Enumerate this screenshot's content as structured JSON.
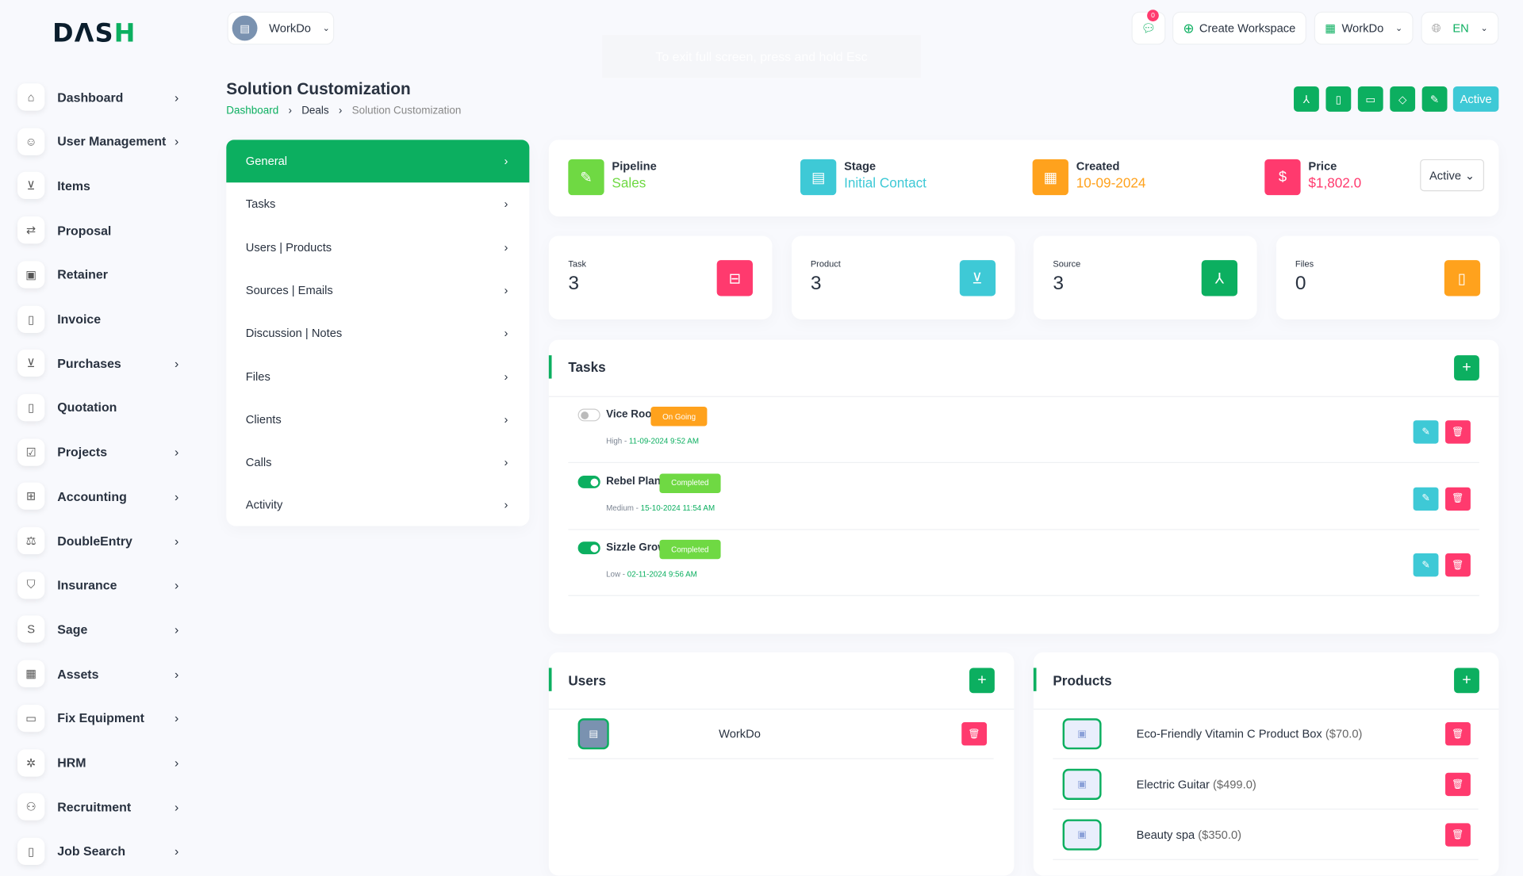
{
  "brand": {
    "logo": "DASH"
  },
  "colors": {
    "primary": "#0CAF60",
    "lime": "#6FD943",
    "cyan": "#3EC9D6",
    "orange": "#FFA21D",
    "pink": "#FF3A6E"
  },
  "sidebar": {
    "items": [
      {
        "label": "Dashboard",
        "icon": "home-icon",
        "chevron": true
      },
      {
        "label": "User Management",
        "icon": "users-icon",
        "chevron": true
      },
      {
        "label": "Items",
        "icon": "cart-icon",
        "chevron": false
      },
      {
        "label": "Proposal",
        "icon": "proposal-icon",
        "chevron": false
      },
      {
        "label": "Retainer",
        "icon": "retainer-icon",
        "chevron": false
      },
      {
        "label": "Invoice",
        "icon": "invoice-icon",
        "chevron": false
      },
      {
        "label": "Purchases",
        "icon": "cart-icon",
        "chevron": true
      },
      {
        "label": "Quotation",
        "icon": "file-icon",
        "chevron": false
      },
      {
        "label": "Projects",
        "icon": "checkbox-icon",
        "chevron": true
      },
      {
        "label": "Accounting",
        "icon": "grid-icon",
        "chevron": true
      },
      {
        "label": "DoubleEntry",
        "icon": "scale-icon",
        "chevron": true
      },
      {
        "label": "Insurance",
        "icon": "shield-icon",
        "chevron": true
      },
      {
        "label": "Sage",
        "icon": "sage-icon",
        "chevron": true
      },
      {
        "label": "Assets",
        "icon": "calculator-icon",
        "chevron": true
      },
      {
        "label": "Fix Equipment",
        "icon": "archive-icon",
        "chevron": true
      },
      {
        "label": "HRM",
        "icon": "hrm-icon",
        "chevron": true
      },
      {
        "label": "Recruitment",
        "icon": "user-plus-icon",
        "chevron": true
      },
      {
        "label": "Job Search",
        "icon": "search-file-icon",
        "chevron": true
      }
    ]
  },
  "header": {
    "workspace": "WorkDo",
    "notification_count": "0",
    "create_workspace": "Create Workspace",
    "workspace_menu": "WorkDo",
    "language": "EN",
    "fullscreen_notice": "To exit full screen, press and hold Esc"
  },
  "page": {
    "title": "Solution Customization",
    "breadcrumb": [
      "Dashboard",
      "Deals",
      "Solution Customization"
    ],
    "status_button": "Active"
  },
  "menu": {
    "items": [
      "General",
      "Tasks",
      "Users | Products",
      "Sources | Emails",
      "Discussion | Notes",
      "Files",
      "Clients",
      "Calls",
      "Activity"
    ]
  },
  "info": {
    "pipeline": {
      "label": "Pipeline",
      "value": "Sales"
    },
    "stage": {
      "label": "Stage",
      "value": "Initial Contact"
    },
    "created": {
      "label": "Created",
      "value": "10-09-2024"
    },
    "price": {
      "label": "Price",
      "value": "$1,802.0"
    },
    "status_select": "Active"
  },
  "stats": [
    {
      "label": "Task",
      "value": "3"
    },
    {
      "label": "Product",
      "value": "3"
    },
    {
      "label": "Source",
      "value": "3"
    },
    {
      "label": "Files",
      "value": "0"
    }
  ],
  "tasks": {
    "title": "Tasks",
    "items": [
      {
        "name": "Vice Root",
        "status": "On Going",
        "priority": "High",
        "date": "11-09-2024 9:52 AM",
        "done": false,
        "color": "#FFA21D"
      },
      {
        "name": "Rebel Plant",
        "status": "Completed",
        "priority": "Medium",
        "date": "15-10-2024 11:54 AM",
        "done": true,
        "color": "#6FD943"
      },
      {
        "name": "Sizzle Grow",
        "status": "Completed",
        "priority": "Low",
        "date": "02-11-2024 9:56 AM",
        "done": true,
        "color": "#6FD943"
      }
    ]
  },
  "users": {
    "title": "Users",
    "items": [
      {
        "name": "WorkDo"
      }
    ]
  },
  "products": {
    "title": "Products",
    "items": [
      {
        "name": "Eco-Friendly Vitamin C Product Box",
        "price": "($70.0)"
      },
      {
        "name": "Electric Guitar",
        "price": "($499.0)"
      },
      {
        "name": "Beauty spa",
        "price": "($350.0)"
      }
    ]
  }
}
